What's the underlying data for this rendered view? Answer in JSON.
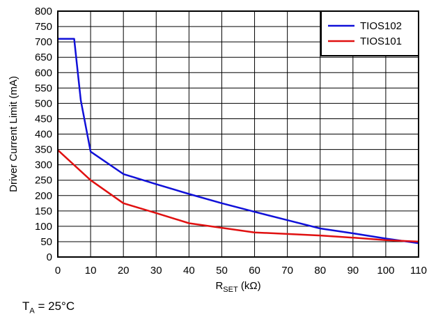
{
  "chart_data": {
    "type": "line",
    "xlabel": {
      "main": "R",
      "sub": "SET",
      "unit": " (kΩ)"
    },
    "ylabel": "Driver Current Limit (mA)",
    "xlim": [
      0,
      110
    ],
    "ylim": [
      0,
      800
    ],
    "x_ticks": [
      "0",
      "10",
      "20",
      "30",
      "40",
      "50",
      "60",
      "70",
      "80",
      "90",
      "100",
      "110"
    ],
    "y_ticks": [
      "0",
      "50",
      "100",
      "150",
      "200",
      "250",
      "300",
      "350",
      "400",
      "450",
      "500",
      "550",
      "600",
      "650",
      "700",
      "750",
      "800"
    ],
    "grid": true,
    "legend_position": "top-right",
    "series": [
      {
        "name": "TIOS102",
        "color": "#1010d8",
        "x": [
          0,
          5,
          7,
          10,
          20,
          30,
          40,
          50,
          60,
          70,
          80,
          90,
          100,
          110
        ],
        "y": [
          710,
          710,
          510,
          343,
          270,
          237,
          205,
          175,
          147,
          120,
          93,
          77,
          60,
          45
        ]
      },
      {
        "name": "TIOS101",
        "color": "#e01010",
        "x": [
          0,
          10,
          20,
          30,
          40,
          50,
          60,
          70,
          80,
          90,
          100,
          110
        ],
        "y": [
          348,
          250,
          175,
          143,
          110,
          95,
          80,
          75,
          70,
          63,
          55,
          50
        ]
      }
    ]
  },
  "annotation": {
    "main": "T",
    "sub": "A",
    "rest": " = 25°C"
  }
}
